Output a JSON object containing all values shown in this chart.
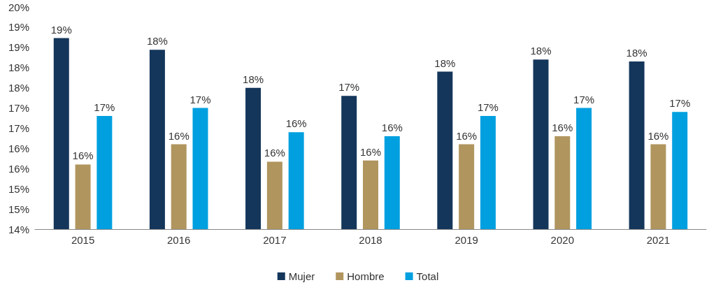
{
  "chart_data": {
    "type": "bar",
    "categories": [
      "2015",
      "2016",
      "2017",
      "2018",
      "2019",
      "2020",
      "2021"
    ],
    "series": [
      {
        "name": "Mujer",
        "color": "#14365a",
        "values": [
          18.73,
          18.44,
          17.5,
          17.3,
          17.9,
          18.2,
          18.15
        ],
        "value_labels": [
          "19%",
          "18%",
          "18%",
          "17%",
          "18%",
          "18%",
          "18%"
        ]
      },
      {
        "name": "Hombre",
        "color": "#b0955f",
        "values": [
          15.6,
          16.1,
          15.67,
          15.7,
          16.1,
          16.3,
          16.1
        ],
        "value_labels": [
          "16%",
          "16%",
          "16%",
          "16%",
          "16%",
          "16%",
          "16%"
        ]
      },
      {
        "name": "Total",
        "color": "#00a0e0",
        "values": [
          16.8,
          17.0,
          16.4,
          16.3,
          16.8,
          17.0,
          16.9
        ],
        "value_labels": [
          "17%",
          "17%",
          "16%",
          "16%",
          "17%",
          "17%",
          "17%"
        ]
      }
    ],
    "ylim": [
      14,
      19.5
    ],
    "yticks": [
      {
        "value": 14,
        "label": "14%"
      },
      {
        "value": 14.5,
        "label": "15%"
      },
      {
        "value": 15,
        "label": "15%"
      },
      {
        "value": 15.5,
        "label": "16%"
      },
      {
        "value": 16,
        "label": "16%"
      },
      {
        "value": 16.5,
        "label": "17%"
      },
      {
        "value": 17,
        "label": "17%"
      },
      {
        "value": 17.5,
        "label": "18%"
      },
      {
        "value": 18,
        "label": "18%"
      },
      {
        "value": 18.5,
        "label": "19%"
      },
      {
        "value": 19,
        "label": "19%"
      },
      {
        "value": 19.5,
        "label": "20%"
      }
    ],
    "grid": false,
    "legend": "bottom"
  }
}
